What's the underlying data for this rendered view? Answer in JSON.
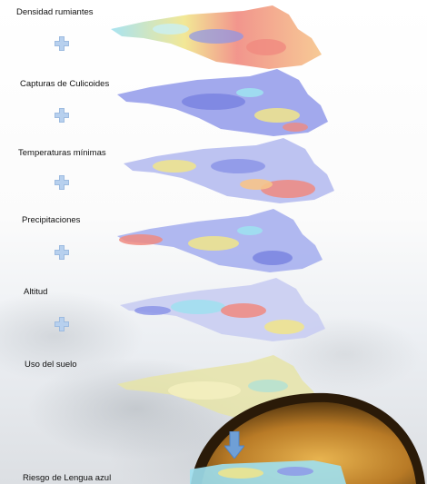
{
  "layers": [
    {
      "label": "Densidad rumiantes"
    },
    {
      "label": "Capturas de Culicoides"
    },
    {
      "label": "Temperaturas mínimas"
    },
    {
      "label": "Precipitaciones"
    },
    {
      "label": "Altitud"
    },
    {
      "label": "Uso del suelo"
    }
  ],
  "result": {
    "label": "Riesgo de Lengua azul"
  },
  "icons": {
    "plus": "plus-icon",
    "arrow": "arrow-down-icon"
  },
  "colors": {
    "plus": "#a9c6e8",
    "arrow": "#6f9fd6",
    "red": "#f08a80",
    "blue": "#8c95e8",
    "yellow": "#f1e58a",
    "cyan": "#9fe0f0",
    "globe_rim": "#2a1a08",
    "globe_core": "#d69a3a"
  }
}
